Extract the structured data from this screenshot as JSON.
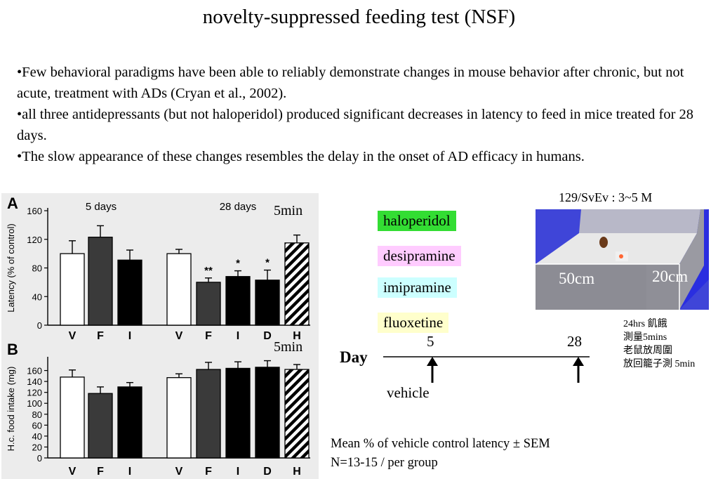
{
  "title": "novelty-suppressed feeding test (NSF)",
  "bullets": [
    "•Few behavioral paradigms have been able to reliably demonstrate changes in mouse behavior after chronic, but not acute, treatment with ADs (Cryan et al., 2002).",
    "•all three antidepressants (but not haloperidol) produced significant decreases in latency to feed in mice treated for 28 days.",
    "•The slow appearance of these changes resembles the delay in the onset of AD efficacy in humans."
  ],
  "chart_data": [
    {
      "type": "bar",
      "panel_letter": "A",
      "ylabel": "Latency (% of control)",
      "ylim": [
        0,
        160
      ],
      "yticks": [
        0,
        40,
        80,
        120,
        160
      ],
      "groups": [
        {
          "label": "5 days",
          "categories": [
            "V",
            "F",
            "I"
          ],
          "values": [
            100,
            123,
            91
          ],
          "errors": [
            18,
            16,
            14
          ],
          "significance": [
            "",
            "",
            ""
          ]
        },
        {
          "label": "28 days",
          "categories": [
            "V",
            "F",
            "I",
            "D",
            "H"
          ],
          "values": [
            100,
            60,
            68,
            63,
            115
          ],
          "errors": [
            6,
            6,
            8,
            14,
            11
          ],
          "significance": [
            "",
            "**",
            "*",
            "*",
            ""
          ]
        }
      ],
      "bar_fills": {
        "V": "#ffffff",
        "F": "#3a3a3a",
        "I": "#000000",
        "D": "#000000",
        "H": "hatched"
      }
    },
    {
      "type": "bar",
      "panel_letter": "B",
      "ylabel": "H.c. food intake (mg)",
      "ylim": [
        0,
        180
      ],
      "yticks": [
        0,
        20,
        40,
        60,
        80,
        100,
        120,
        140,
        160
      ],
      "groups": [
        {
          "categories": [
            "V",
            "F",
            "I"
          ],
          "values": [
            148,
            118,
            130
          ],
          "errors": [
            13,
            12,
            8
          ]
        },
        {
          "categories": [
            "V",
            "F",
            "I",
            "D",
            "H"
          ],
          "values": [
            147,
            162,
            164,
            166,
            162
          ],
          "errors": [
            7,
            13,
            12,
            12,
            9
          ]
        }
      ],
      "bar_fills": {
        "V": "#ffffff",
        "F": "#3a3a3a",
        "I": "#000000",
        "D": "#000000",
        "H": "hatched"
      }
    }
  ],
  "five_min_labels": [
    "5min",
    "5min"
  ],
  "drugs": [
    {
      "name": "haloperidol",
      "color": "#33dd33"
    },
    {
      "name": "desipramine",
      "color": "#ffccff"
    },
    {
      "name": "imipramine",
      "color": "#ccffff"
    },
    {
      "name": "fluoxetine",
      "color": "#ffffcc"
    }
  ],
  "strain_label": "129/SvEv  : 3~5 M",
  "arena": {
    "length": "50cm",
    "height": "20cm"
  },
  "notes": [
    "24hrs 飢餓",
    "測量5mins",
    "老鼠放周圍",
    "放回籠子測 5min"
  ],
  "timeline": {
    "axis_label": "Day",
    "ticks": [
      "5",
      "28"
    ],
    "vehicle_label": "vehicle"
  },
  "caption": [
    "Mean % of vehicle control latency ± SEM",
    "N=13-15 / per group"
  ]
}
